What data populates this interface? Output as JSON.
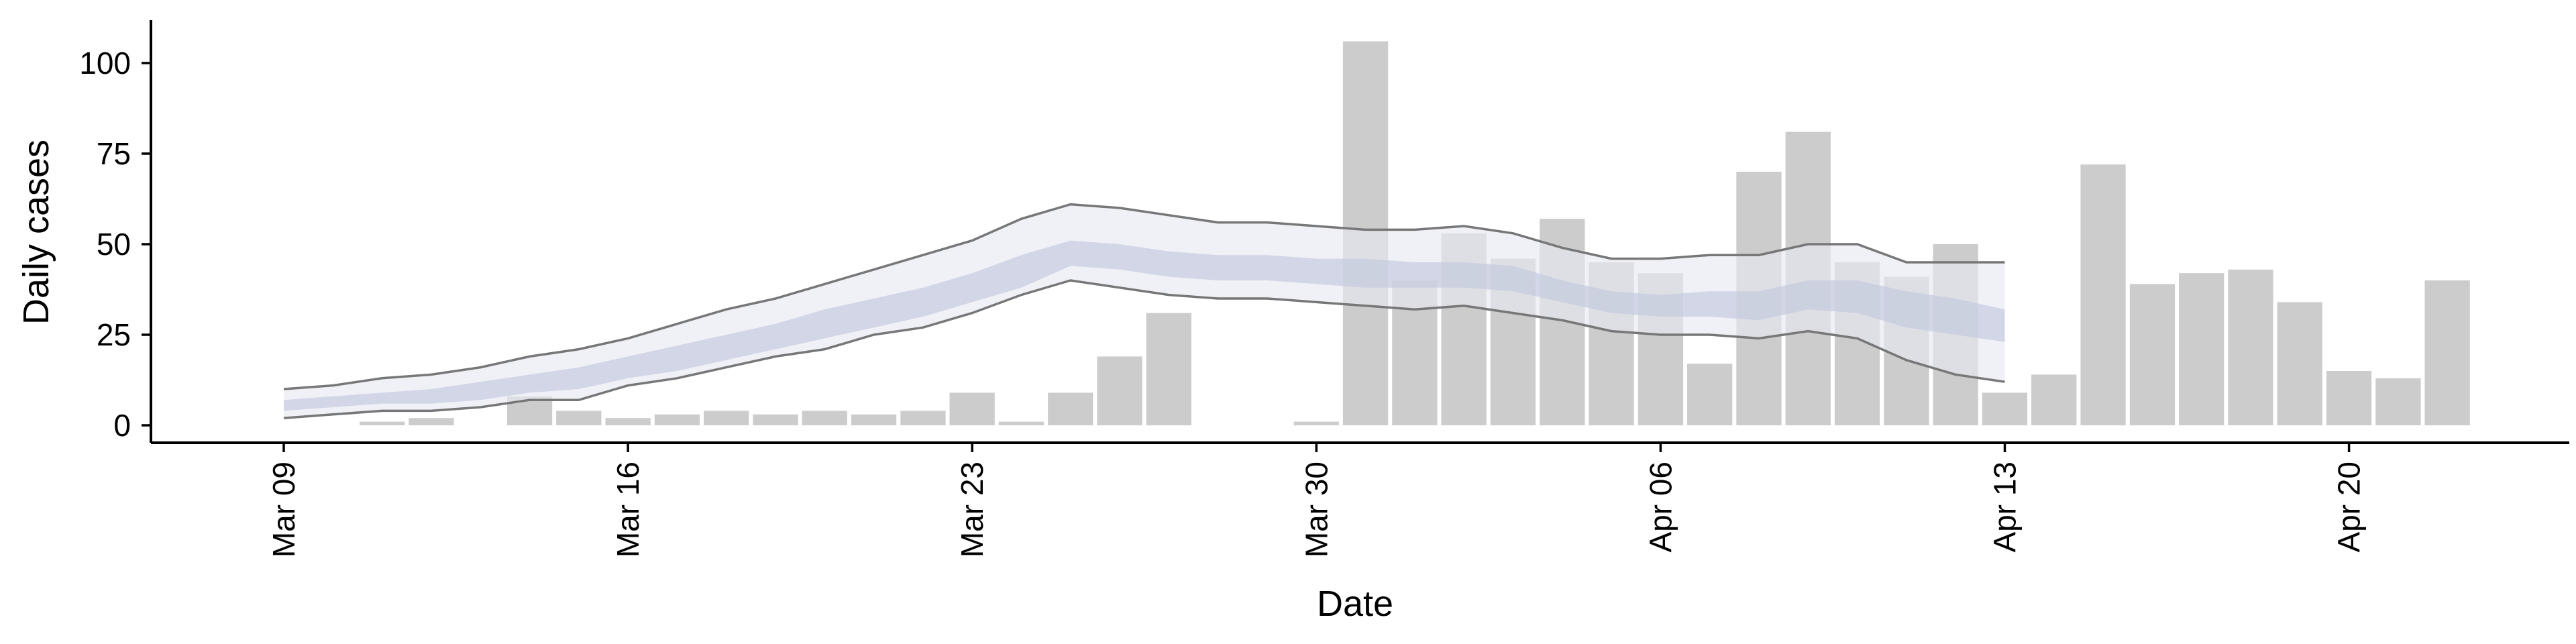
{
  "chart_data": {
    "type": "bar",
    "xlabel": "Date",
    "ylabel": "Daily cases",
    "ylim": [
      -5,
      112
    ],
    "yticks": [
      0,
      25,
      50,
      75,
      100
    ],
    "x_start": "Mar 09",
    "x_end": "Apr 22",
    "xtick_labels": [
      {
        "label": "Mar 09",
        "date": "Mar 09"
      },
      {
        "label": "Mar 16",
        "date": "Mar 16"
      },
      {
        "label": "Mar 23",
        "date": "Mar 23"
      },
      {
        "label": "Mar 30",
        "date": "Mar 30"
      },
      {
        "label": "Apr 06",
        "date": "Apr 06"
      },
      {
        "label": "Apr 13",
        "date": "Apr 13"
      },
      {
        "label": "Apr 20",
        "date": "Apr 20"
      }
    ],
    "dates": [
      "Mar 09",
      "Mar 10",
      "Mar 11",
      "Mar 12",
      "Mar 13",
      "Mar 14",
      "Mar 15",
      "Mar 16",
      "Mar 17",
      "Mar 18",
      "Mar 19",
      "Mar 20",
      "Mar 21",
      "Mar 22",
      "Mar 23",
      "Mar 24",
      "Mar 25",
      "Mar 26",
      "Mar 27",
      "Mar 28",
      "Mar 29",
      "Mar 30",
      "Mar 31",
      "Apr 01",
      "Apr 02",
      "Apr 03",
      "Apr 04",
      "Apr 05",
      "Apr 06",
      "Apr 07",
      "Apr 08",
      "Apr 09",
      "Apr 10",
      "Apr 11",
      "Apr 12",
      "Apr 13",
      "Apr 14",
      "Apr 15",
      "Apr 16",
      "Apr 17",
      "Apr 18",
      "Apr 19",
      "Apr 20",
      "Apr 21",
      "Apr 22"
    ],
    "series": [
      {
        "values": [
          0,
          0,
          1,
          2,
          0,
          8,
          4,
          2,
          3,
          4,
          3,
          4,
          3,
          4,
          9,
          1,
          9,
          19,
          31,
          0,
          0,
          1,
          106,
          40,
          53,
          46,
          57,
          45,
          42,
          17,
          70,
          81,
          45,
          41,
          50,
          9,
          14,
          72,
          39,
          42,
          43,
          34,
          15,
          13,
          40
        ],
        "color": "#cccccc"
      }
    ],
    "band_dates": [
      "Mar 09",
      "Mar 10",
      "Mar 11",
      "Mar 12",
      "Mar 13",
      "Mar 14",
      "Mar 15",
      "Mar 16",
      "Mar 17",
      "Mar 18",
      "Mar 19",
      "Mar 20",
      "Mar 21",
      "Mar 22",
      "Mar 23",
      "Mar 24",
      "Mar 25",
      "Mar 26",
      "Mar 27",
      "Mar 28",
      "Mar 29",
      "Mar 30",
      "Mar 31",
      "Apr 01",
      "Apr 02",
      "Apr 03",
      "Apr 04",
      "Apr 05",
      "Apr 06",
      "Apr 07",
      "Apr 08",
      "Apr 09",
      "Apr 10",
      "Apr 11",
      "Apr 12",
      "Apr 13"
    ],
    "band_outer_upper": [
      10,
      11,
      13,
      14,
      16,
      19,
      21,
      24,
      28,
      32,
      35,
      39,
      43,
      47,
      51,
      57,
      61,
      60,
      58,
      56,
      56,
      55,
      54,
      54,
      55,
      53,
      49,
      46,
      46,
      47,
      47,
      50,
      50,
      45,
      45,
      45
    ],
    "band_outer_lower": [
      2,
      3,
      4,
      4,
      5,
      7,
      7,
      11,
      13,
      16,
      19,
      21,
      25,
      27,
      31,
      36,
      40,
      38,
      36,
      35,
      35,
      34,
      33,
      32,
      33,
      31,
      29,
      26,
      25,
      25,
      24,
      26,
      24,
      18,
      14,
      12
    ],
    "band_inner_upper": [
      7,
      8,
      9,
      10,
      12,
      14,
      16,
      19,
      22,
      25,
      28,
      32,
      35,
      38,
      42,
      47,
      51,
      50,
      48,
      47,
      47,
      46,
      46,
      45,
      45,
      44,
      40,
      37,
      36,
      37,
      37,
      40,
      40,
      37,
      35,
      32
    ],
    "band_inner_lower": [
      4,
      5,
      6,
      6,
      7,
      9,
      10,
      13,
      15,
      18,
      21,
      24,
      27,
      30,
      34,
      38,
      44,
      43,
      41,
      40,
      40,
      39,
      38,
      38,
      38,
      37,
      34,
      31,
      30,
      30,
      29,
      32,
      31,
      27,
      25,
      23
    ],
    "grid": false,
    "legend": "none",
    "colors": {
      "bar": "#cccccc",
      "band_outer": "#e8eaf2",
      "band_inner": "#c4cade",
      "band_line": "#777777",
      "axis": "#000000"
    }
  }
}
